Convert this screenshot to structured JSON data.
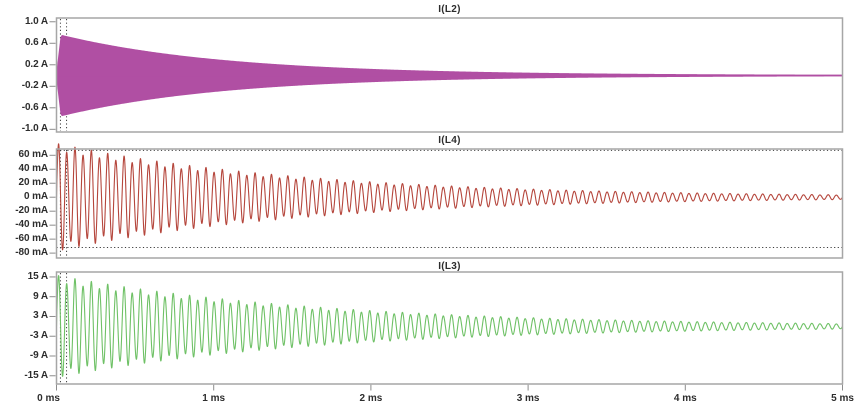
{
  "figure": {
    "background": "#ffffff",
    "panel_border_color": "#a6a6a6",
    "tick_color": "#8c8c8c",
    "text_color": "#2d2d2d",
    "cursor_color": "#3c3c3c",
    "cursor_times_ms": [
      0.025,
      0.064
    ]
  },
  "x_axis": {
    "unit": "ms",
    "range_ms": [
      0,
      5
    ],
    "ticks": [
      {
        "label": "0 ms",
        "value": 0
      },
      {
        "label": "1 ms",
        "value": 1
      },
      {
        "label": "2 ms",
        "value": 2
      },
      {
        "label": "3 ms",
        "value": 3
      },
      {
        "label": "4 ms",
        "value": 4
      },
      {
        "label": "5 ms",
        "value": 5
      }
    ]
  },
  "chart_data": [
    {
      "type": "line",
      "title": "I(L2)",
      "trace_color": "#b04fa3",
      "y_unit": "A",
      "ylim": [
        -1.05,
        1.07
      ],
      "y_ticks": [
        {
          "label": "1.0 A",
          "value": 1.0
        },
        {
          "label": "0.6 A",
          "value": 0.6
        },
        {
          "label": "0.2 A",
          "value": 0.2
        },
        {
          "label": "-0.2 A",
          "value": -0.2
        },
        {
          "label": "-0.6 A",
          "value": -0.6
        },
        {
          "label": "-1.0 A",
          "value": -1.0
        }
      ],
      "waveform": {
        "model": "damped_sine",
        "render": "envelope_fill",
        "initial_amplitude": 0.77,
        "decay_tau_ms": 1.05,
        "frequency_khz": 160,
        "subharmonic_modulation": 0,
        "envelope_by_ms": [
          0.77,
          0.3,
          0.12,
          0.045,
          0.017,
          0.007
        ]
      },
      "cursors": {
        "horizontal": []
      }
    },
    {
      "type": "line",
      "title": "I(L4)",
      "trace_color": "#b5463c",
      "y_unit": "mA",
      "ylim": [
        -87,
        69
      ],
      "y_ticks": [
        {
          "label": "60 mA",
          "value": 60
        },
        {
          "label": "40 mA",
          "value": 40
        },
        {
          "label": "20 mA",
          "value": 20
        },
        {
          "label": "0 mA",
          "value": 0
        },
        {
          "label": "-20 mA",
          "value": -20
        },
        {
          "label": "-40 mA",
          "value": -40
        },
        {
          "label": "-60 mA",
          "value": -60
        },
        {
          "label": "-80 mA",
          "value": -80
        }
      ],
      "waveform": {
        "model": "damped_sine",
        "render": "line",
        "initial_amplitude": 72,
        "decay_tau_ms": 1.6,
        "frequency_khz": 19.2,
        "subharmonic_modulation": 0.1,
        "envelope_by_ms": [
          72,
          38.5,
          20.6,
          11,
          5.9,
          3.2
        ]
      },
      "cursors": {
        "horizontal": [
          67,
          -72
        ]
      }
    },
    {
      "type": "line",
      "title": "I(L3)",
      "trace_color": "#6fc166",
      "y_unit": "A",
      "ylim": [
        -17.5,
        16.5
      ],
      "y_ticks": [
        {
          "label": "15 A",
          "value": 15
        },
        {
          "label": "9 A",
          "value": 9
        },
        {
          "label": "3 A",
          "value": 3
        },
        {
          "label": "-3 A",
          "value": -3
        },
        {
          "label": "-9 A",
          "value": -9
        },
        {
          "label": "-15 A",
          "value": -15
        }
      ],
      "waveform": {
        "model": "damped_sine",
        "render": "line",
        "initial_amplitude": 14.5,
        "decay_tau_ms": 1.7,
        "frequency_khz": 19.2,
        "subharmonic_modulation": 0.1,
        "envelope_by_ms": [
          14.5,
          8.1,
          4.5,
          2.5,
          1.4,
          0.8
        ]
      },
      "cursors": {
        "horizontal": []
      }
    }
  ]
}
